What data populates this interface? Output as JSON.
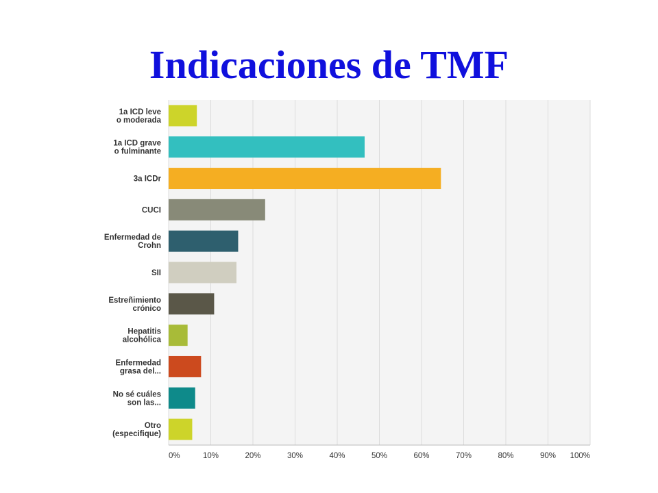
{
  "title": "Indicaciones de TMF",
  "chart_data": {
    "type": "bar",
    "orientation": "horizontal",
    "categories": [
      [
        "1a ICD leve",
        "o moderada"
      ],
      [
        "1a ICD grave",
        "o fulminante"
      ],
      [
        "3a ICDr"
      ],
      [
        "CUCI"
      ],
      [
        "Enfermedad de",
        "Crohn"
      ],
      [
        "SII"
      ],
      [
        "Estreñimiento",
        "crónico"
      ],
      [
        "Hepatitis",
        "alcohólica"
      ],
      [
        "Enfermedad",
        "grasa del..."
      ],
      [
        "No sé cuáles",
        "son las..."
      ],
      [
        "Otro",
        "(especifique)"
      ]
    ],
    "values": [
      6.7,
      46.5,
      64.6,
      22.9,
      16.5,
      16.1,
      10.8,
      4.5,
      7.7,
      6.3,
      5.6
    ],
    "colors": [
      "#cdd42a",
      "#33bfbf",
      "#f5ae22",
      "#888a78",
      "#2e5f6e",
      "#d0cec0",
      "#5a5748",
      "#a8bb38",
      "#cc4a1e",
      "#0e8a8a",
      "#cdd42a"
    ],
    "xlim": [
      0,
      100
    ],
    "x_ticks": [
      "0%",
      "10%",
      "20%",
      "30%",
      "40%",
      "50%",
      "60%",
      "70%",
      "80%",
      "90%",
      "100%"
    ],
    "grid": true,
    "background": "#f4f4f4"
  }
}
